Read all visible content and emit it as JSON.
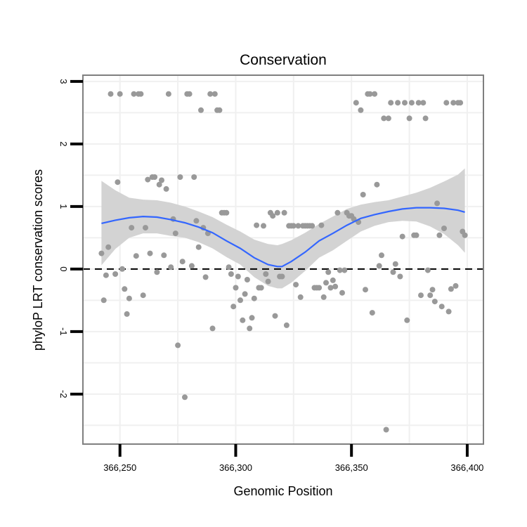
{
  "chart_data": {
    "type": "scatter",
    "title": "Conservation",
    "xlabel": "Genomic Position",
    "ylabel": "phyloP LRT conservation scores",
    "xlim": [
      366234,
      366407
    ],
    "ylim": [
      -2.8,
      3.1
    ],
    "x_ticks": [
      366250,
      366300,
      366350,
      366400
    ],
    "x_tick_labels": [
      "366,250",
      "366,300",
      "366,350",
      "366,400"
    ],
    "y_ticks": [
      -2,
      -1,
      0,
      1,
      2,
      3
    ],
    "y_tick_labels": [
      "-2",
      "-1",
      "0",
      "1",
      "2",
      "3"
    ],
    "grid": true,
    "reference_line": {
      "y": 0,
      "style": "dashed"
    },
    "colors": {
      "points": "#999999",
      "smooth": "#3366ff",
      "band": "#d3d3d3",
      "frame": "#7f7f7f",
      "grid": "#f0f0f0"
    },
    "points": [
      [
        366242,
        0.25
      ],
      [
        366243,
        -0.5
      ],
      [
        366244,
        -0.1
      ],
      [
        366245,
        0.35
      ],
      [
        366246,
        2.8
      ],
      [
        366248,
        -0.08
      ],
      [
        366249,
        1.39
      ],
      [
        366250,
        2.8
      ],
      [
        366251,
        0.0
      ],
      [
        366252,
        -0.32
      ],
      [
        366253,
        -0.72
      ],
      [
        366254,
        -0.47
      ],
      [
        366255,
        0.66
      ],
      [
        366256,
        2.8
      ],
      [
        366257,
        0.21
      ],
      [
        366258,
        2.8
      ],
      [
        366259,
        2.8
      ],
      [
        366260,
        -0.42
      ],
      [
        366261,
        0.66
      ],
      [
        366262,
        1.43
      ],
      [
        366263,
        0.25
      ],
      [
        366264,
        1.47
      ],
      [
        366265,
        1.47
      ],
      [
        366266,
        -0.05
      ],
      [
        366267,
        1.35
      ],
      [
        366268,
        1.42
      ],
      [
        366269,
        0.22
      ],
      [
        366270,
        1.28
      ],
      [
        366271,
        2.8
      ],
      [
        366272,
        0.03
      ],
      [
        366273,
        0.8
      ],
      [
        366274,
        0.57
      ],
      [
        366275,
        -1.22
      ],
      [
        366276,
        1.47
      ],
      [
        366277,
        0.12
      ],
      [
        366278,
        -2.05
      ],
      [
        366279,
        2.8
      ],
      [
        366280,
        2.8
      ],
      [
        366281,
        0.05
      ],
      [
        366282,
        1.47
      ],
      [
        366283,
        0.77
      ],
      [
        366284,
        0.35
      ],
      [
        366285,
        2.54
      ],
      [
        366286,
        0.66
      ],
      [
        366287,
        -0.13
      ],
      [
        366288,
        0.57
      ],
      [
        366289,
        2.8
      ],
      [
        366290,
        -0.95
      ],
      [
        366291,
        2.8
      ],
      [
        366292,
        2.54
      ],
      [
        366293,
        2.54
      ],
      [
        366294,
        0.9
      ],
      [
        366295,
        0.9
      ],
      [
        366296,
        0.9
      ],
      [
        366297,
        0.03
      ],
      [
        366298,
        -0.08
      ],
      [
        366299,
        -0.6
      ],
      [
        366300,
        -0.3
      ],
      [
        366301,
        -0.12
      ],
      [
        366302,
        -0.5
      ],
      [
        366303,
        -0.82
      ],
      [
        366304,
        -0.4
      ],
      [
        366305,
        -0.17
      ],
      [
        366306,
        -0.95
      ],
      [
        366307,
        -0.78
      ],
      [
        366308,
        -0.47
      ],
      [
        366309,
        0.7
      ],
      [
        366310,
        -0.3
      ],
      [
        366311,
        -0.3
      ],
      [
        366312,
        0.69
      ],
      [
        366313,
        -0.08
      ],
      [
        366314,
        -0.2
      ],
      [
        366315,
        0.9
      ],
      [
        366316,
        0.85
      ],
      [
        366317,
        -0.75
      ],
      [
        366318,
        0.9
      ],
      [
        366319,
        -0.12
      ],
      [
        366320,
        -0.12
      ],
      [
        366321,
        0.9
      ],
      [
        366322,
        -0.9
      ],
      [
        366323,
        0.69
      ],
      [
        366324,
        0.69
      ],
      [
        366325,
        0.69
      ],
      [
        366326,
        -0.25
      ],
      [
        366327,
        0.69
      ],
      [
        366328,
        -0.45
      ],
      [
        366329,
        0.69
      ],
      [
        366330,
        0.69
      ],
      [
        366331,
        0.69
      ],
      [
        366332,
        0.69
      ],
      [
        366333,
        0.69
      ],
      [
        366334,
        -0.3
      ],
      [
        366335,
        -0.3
      ],
      [
        366336,
        -0.3
      ],
      [
        366337,
        0.7
      ],
      [
        366338,
        -0.45
      ],
      [
        366339,
        -0.22
      ],
      [
        366340,
        -0.05
      ],
      [
        366341,
        -0.3
      ],
      [
        366342,
        -0.18
      ],
      [
        366343,
        -0.28
      ],
      [
        366344,
        0.9
      ],
      [
        366345,
        -0.02
      ],
      [
        366346,
        -0.38
      ],
      [
        366347,
        -0.02
      ],
      [
        366348,
        0.9
      ],
      [
        366349,
        0.85
      ],
      [
        366350,
        0.85
      ],
      [
        366351,
        0.8
      ],
      [
        366352,
        2.66
      ],
      [
        366353,
        0.75
      ],
      [
        366354,
        2.54
      ],
      [
        366355,
        1.19
      ],
      [
        366356,
        -0.33
      ],
      [
        366357,
        2.8
      ],
      [
        366358,
        2.8
      ],
      [
        366359,
        -0.7
      ],
      [
        366360,
        2.8
      ],
      [
        366361,
        1.35
      ],
      [
        366362,
        0.05
      ],
      [
        366363,
        0.22
      ],
      [
        366364,
        2.41
      ],
      [
        366365,
        -2.57
      ],
      [
        366366,
        2.41
      ],
      [
        366367,
        2.66
      ],
      [
        366368,
        -0.05
      ],
      [
        366369,
        0.08
      ],
      [
        366370,
        2.66
      ],
      [
        366371,
        -0.12
      ],
      [
        366372,
        0.52
      ],
      [
        366373,
        2.66
      ],
      [
        366374,
        -0.82
      ],
      [
        366375,
        2.41
      ],
      [
        366376,
        2.66
      ],
      [
        366377,
        0.54
      ],
      [
        366378,
        0.54
      ],
      [
        366379,
        2.66
      ],
      [
        366380,
        -0.42
      ],
      [
        366381,
        2.66
      ],
      [
        366382,
        2.41
      ],
      [
        366383,
        -0.02
      ],
      [
        366384,
        -0.42
      ],
      [
        366385,
        -0.33
      ],
      [
        366386,
        -0.52
      ],
      [
        366387,
        1.05
      ],
      [
        366388,
        0.54
      ],
      [
        366389,
        -0.6
      ],
      [
        366390,
        0.65
      ],
      [
        366391,
        2.66
      ],
      [
        366392,
        -0.68
      ],
      [
        366393,
        -0.32
      ],
      [
        366394,
        2.66
      ],
      [
        366395,
        -0.27
      ],
      [
        366396,
        2.66
      ],
      [
        366397,
        2.66
      ],
      [
        366398,
        0.6
      ],
      [
        366399,
        0.54
      ]
    ],
    "smooth": {
      "x": [
        366242,
        366248,
        366254,
        366260,
        366266,
        366272,
        366278,
        366284,
        366290,
        366296,
        366302,
        366308,
        366314,
        366318,
        366320,
        366324,
        366330,
        366336,
        366342,
        366348,
        366354,
        366360,
        366366,
        366372,
        366378,
        366384,
        366390,
        366396,
        366399
      ],
      "y": [
        0.73,
        0.78,
        0.82,
        0.84,
        0.83,
        0.79,
        0.74,
        0.67,
        0.58,
        0.45,
        0.33,
        0.18,
        0.07,
        0.04,
        0.04,
        0.12,
        0.27,
        0.45,
        0.57,
        0.7,
        0.81,
        0.87,
        0.92,
        0.96,
        0.98,
        0.98,
        0.97,
        0.94,
        0.91
      ],
      "lower": [
        0.06,
        0.32,
        0.5,
        0.57,
        0.57,
        0.53,
        0.5,
        0.43,
        0.33,
        0.19,
        0.07,
        -0.13,
        -0.27,
        -0.31,
        -0.31,
        -0.22,
        -0.03,
        0.18,
        0.3,
        0.45,
        0.6,
        0.69,
        0.75,
        0.77,
        0.76,
        0.68,
        0.56,
        0.38,
        0.26
      ],
      "upper": [
        1.41,
        1.26,
        1.14,
        1.11,
        1.1,
        1.06,
        1.0,
        0.92,
        0.83,
        0.71,
        0.6,
        0.47,
        0.4,
        0.38,
        0.4,
        0.46,
        0.58,
        0.72,
        0.84,
        0.96,
        1.03,
        1.07,
        1.1,
        1.16,
        1.22,
        1.3,
        1.4,
        1.51,
        1.61
      ]
    }
  }
}
